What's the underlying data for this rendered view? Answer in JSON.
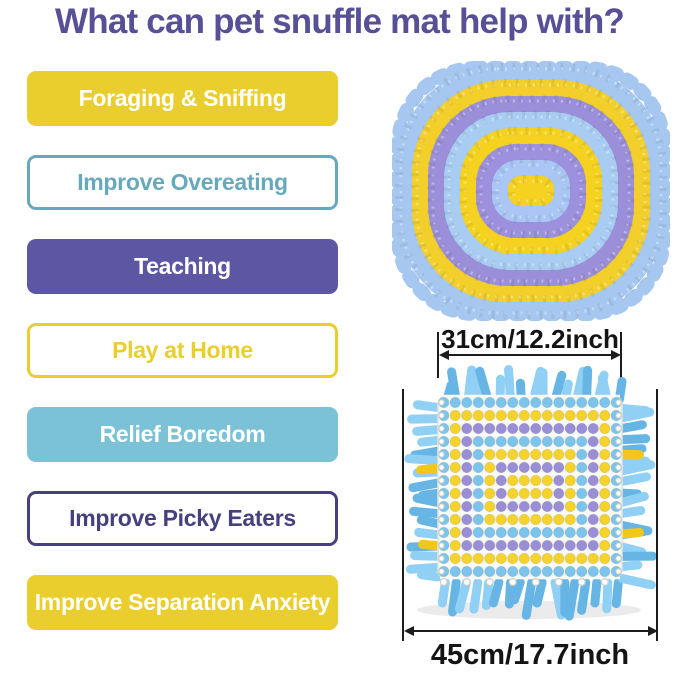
{
  "title": "What can pet snuffle mat help with?",
  "palette": {
    "title_purple": "#575096",
    "yellow": "#eace2e",
    "teal": "#67a9bc",
    "purple": "#5d57a3",
    "light_blue": "#7cc2d6",
    "dark_purple": "#46407f",
    "dim_line": "#1c1c1c"
  },
  "benefits": [
    {
      "label": "Foraging & Sniffing"
    },
    {
      "label": "Improve Overeating"
    },
    {
      "label": "Teaching"
    },
    {
      "label": "Play at Home"
    },
    {
      "label": "Relief Boredom"
    },
    {
      "label": "Improve Picky Eaters"
    },
    {
      "label": "Improve Separation Anxiety"
    }
  ],
  "product": {
    "top_mat": {
      "ring_colors": [
        "#a5c7f0",
        "#f2cf2b",
        "#9b8fd9",
        "#a9cdf2",
        "#f4d21f",
        "#9d90dc",
        "#a9c6f4",
        "#f5d21f"
      ]
    },
    "back_mat": {
      "fringe_light": "#8fd0f4",
      "fringe_dark": "#66b5e5",
      "fringe_accent": "#f2c818",
      "base_color": "#f6f6f2",
      "knot_ring_colors": [
        "#7cc4ec",
        "#f5d32a",
        "#9a8ed6",
        "#7cc4ec",
        "#f5d32a",
        "#9a8ed6",
        "#f5d32a"
      ],
      "grid_cols": 16,
      "grid_rows": 14
    },
    "dimensions": {
      "inner_width": "31cm/12.2inch",
      "outer_width": "45cm/17.7inch"
    }
  }
}
